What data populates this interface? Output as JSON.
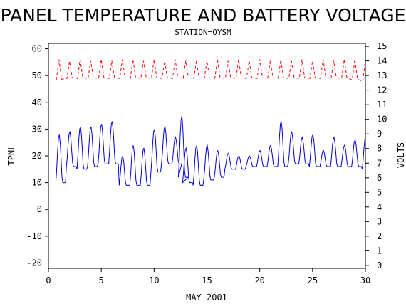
{
  "chart_data": {
    "type": "line",
    "title": "PANEL TEMPERATURE AND BATTERY VOLTAGE",
    "subtitle": "STATION=OYSM",
    "xlabel": "MAY 2001",
    "ylabel_left": "TPNL",
    "ylabel_right": "VOLTS",
    "xlim": [
      0,
      30
    ],
    "ylim_left": [
      -22,
      62
    ],
    "ylim_right": [
      -0.2,
      15.2
    ],
    "x_ticks": [
      0,
      5,
      10,
      15,
      20,
      25,
      30
    ],
    "y_left_ticks": [
      -20,
      -10,
      0,
      10,
      20,
      30,
      40,
      50,
      60
    ],
    "y_right_ticks": [
      0,
      1,
      2,
      3,
      4,
      5,
      6,
      7,
      8,
      9,
      10,
      11,
      12,
      13,
      14,
      15
    ],
    "grid": false,
    "legend": "none",
    "colors": {
      "temperature": "#0000dd",
      "voltage": "#ff0000",
      "axis": "#000000"
    },
    "series": [
      {
        "axis": "left",
        "style": "solid",
        "data_note": "hourly panel temperature, daily cycle",
        "daily": [
          [
            1,
            10,
            28
          ],
          [
            2,
            16,
            29
          ],
          [
            3,
            15,
            31
          ],
          [
            4,
            16,
            31
          ],
          [
            5,
            17,
            32
          ],
          [
            6,
            17,
            33
          ],
          [
            7,
            9,
            20
          ],
          [
            8,
            9,
            24
          ],
          [
            9,
            9,
            23
          ],
          [
            10,
            14,
            30
          ],
          [
            11,
            17,
            31
          ],
          [
            12,
            17,
            27
          ],
          [
            12.6,
            12,
            35
          ],
          [
            13,
            10,
            23
          ],
          [
            14,
            9,
            24
          ],
          [
            15,
            11,
            24
          ],
          [
            16,
            12,
            22
          ],
          [
            17,
            15,
            21
          ],
          [
            18,
            15,
            20
          ],
          [
            19,
            16,
            20
          ],
          [
            20,
            16,
            22
          ],
          [
            21,
            16,
            24
          ],
          [
            22,
            16,
            33
          ],
          [
            23,
            17,
            29
          ],
          [
            24,
            17,
            27
          ],
          [
            25,
            16,
            28
          ],
          [
            26,
            16,
            22
          ],
          [
            27,
            16,
            27
          ],
          [
            28,
            16,
            24
          ],
          [
            29,
            16,
            26
          ],
          [
            30,
            15,
            27
          ]
        ]
      },
      {
        "axis": "right",
        "style": "dashed",
        "data_note": "battery voltage",
        "daily": [
          [
            1,
            12.7,
            14.1
          ],
          [
            2,
            12.8,
            14.0
          ],
          [
            3,
            12.8,
            14.1
          ],
          [
            4,
            12.8,
            14.0
          ],
          [
            5,
            12.8,
            14.1
          ],
          [
            6,
            12.8,
            14.0
          ],
          [
            7,
            12.8,
            14.1
          ],
          [
            8,
            12.8,
            14.1
          ],
          [
            9,
            12.8,
            14.0
          ],
          [
            10,
            12.8,
            14.1
          ],
          [
            11,
            12.8,
            14.0
          ],
          [
            12,
            12.8,
            14.1
          ],
          [
            13,
            12.8,
            14.0
          ],
          [
            14,
            12.8,
            14.0
          ],
          [
            15,
            12.8,
            14.0
          ],
          [
            16,
            12.8,
            14.1
          ],
          [
            17,
            12.8,
            14.0
          ],
          [
            18,
            12.8,
            14.1
          ],
          [
            19,
            12.8,
            14.0
          ],
          [
            20,
            12.8,
            14.1
          ],
          [
            21,
            12.8,
            14.0
          ],
          [
            22,
            12.8,
            14.1
          ],
          [
            23,
            12.8,
            14.0
          ],
          [
            24,
            12.8,
            14.1
          ],
          [
            25,
            12.8,
            14.0
          ],
          [
            26,
            12.8,
            14.1
          ],
          [
            27,
            12.8,
            14.0
          ],
          [
            28,
            12.8,
            14.1
          ],
          [
            29,
            12.7,
            14.1
          ],
          [
            30,
            12.6,
            14.0
          ]
        ]
      }
    ]
  }
}
